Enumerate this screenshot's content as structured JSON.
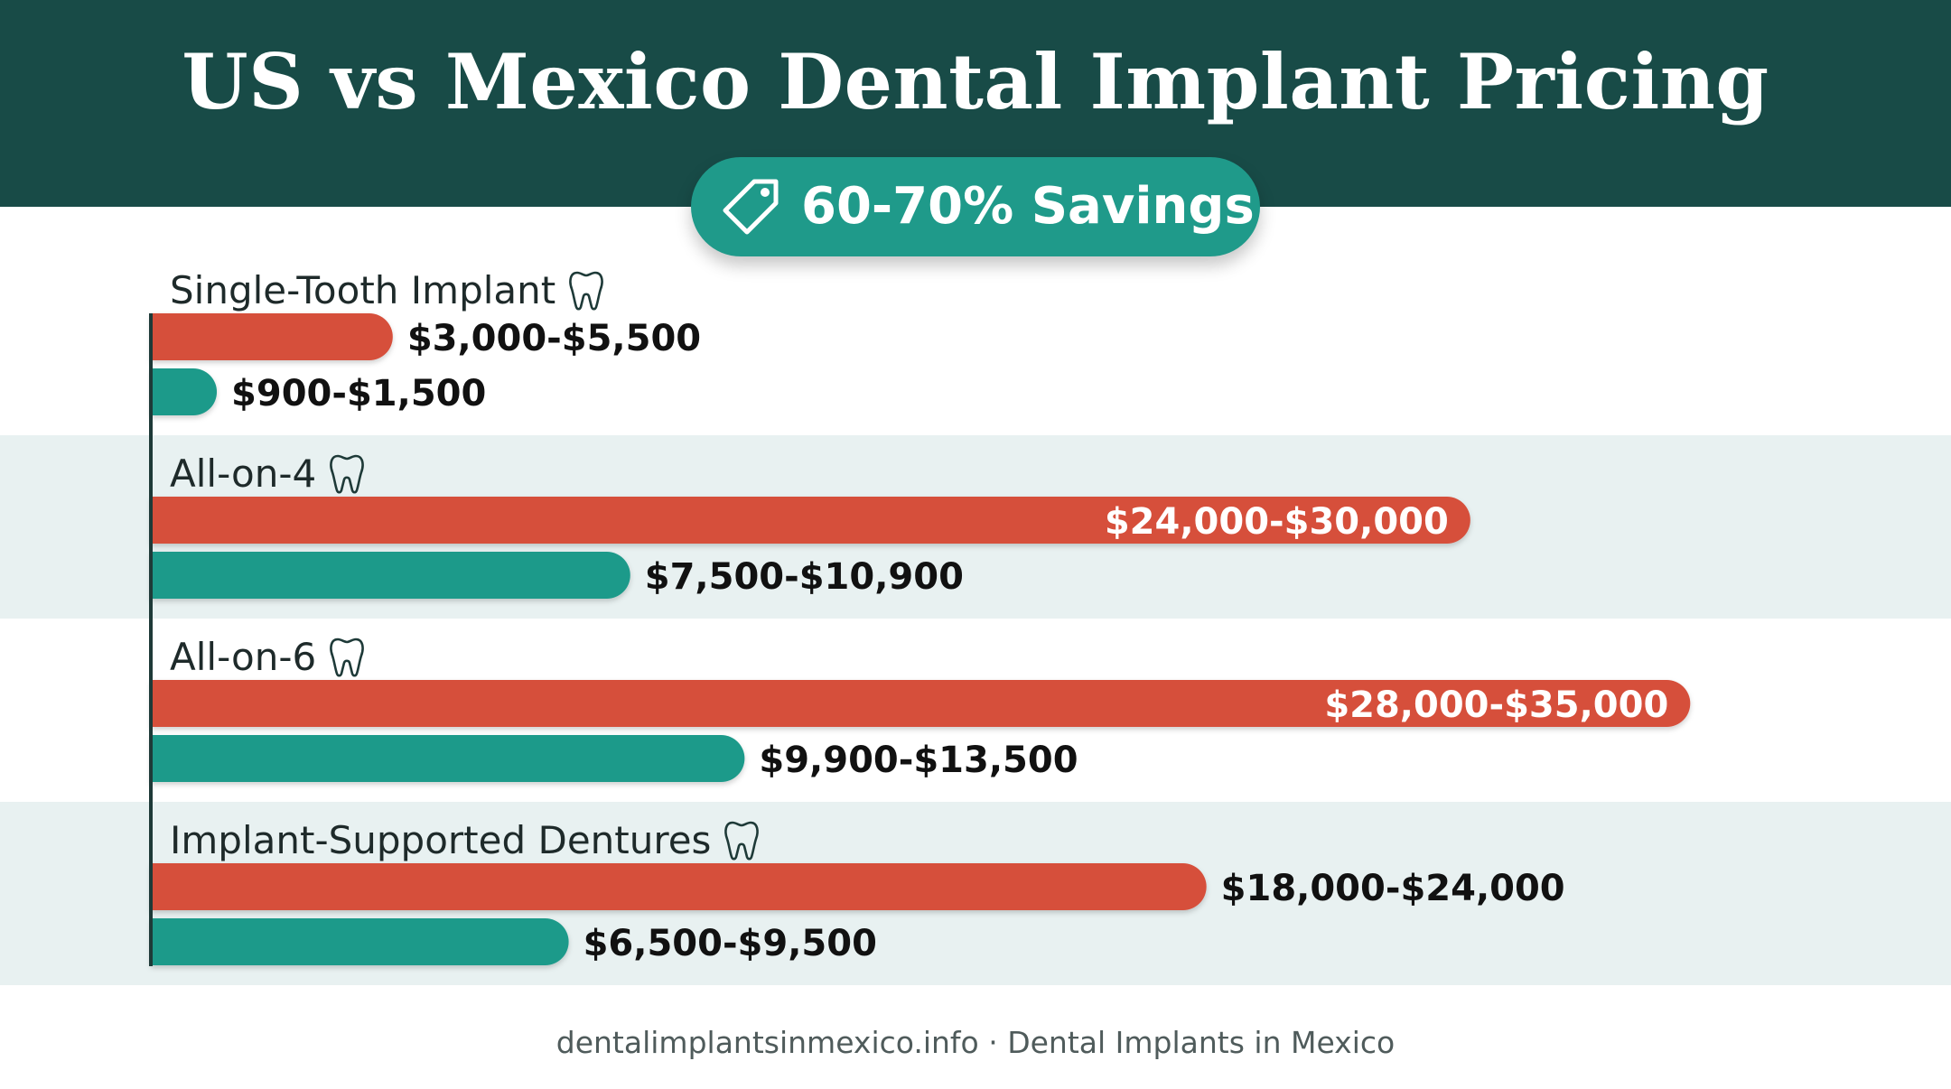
{
  "title": "US vs Mexico Dental Implant Pricing",
  "badge": {
    "text": "60-70% Savings",
    "icon": "price-tag-icon"
  },
  "footer": "dentalimplantsinmexico.info · Dental Implants in Mexico",
  "colors": {
    "header_bg": "#184b47",
    "us_bar": "#d64f3b",
    "mexico_bar": "#1f9a8a",
    "badge_bg": "#1f9a8a",
    "band_bg": "#e8f1f1",
    "axis": "#1e3a38",
    "label_text": "#1e2a2a"
  },
  "chart_data": {
    "type": "bar",
    "orientation": "horizontal",
    "title": "US vs Mexico Dental Implant Pricing",
    "xlim": [
      0,
      36000
    ],
    "grid": false,
    "legend": "none",
    "categories": [
      "Single-Tooth Implant",
      "All-on-4",
      "All-on-6",
      "Implant-Supported Dentures"
    ],
    "category_icon": "tooth-icon",
    "series": [
      {
        "color": "#d64f3b",
        "values": [
          5500,
          30000,
          35000,
          24000
        ],
        "ranges": [
          [
            3000,
            5500
          ],
          [
            24000,
            30000
          ],
          [
            28000,
            35000
          ],
          [
            18000,
            24000
          ]
        ],
        "labels": [
          "$3,000-$5,500",
          "$24,000-$30,000",
          "$28,000-$35,000",
          "$18,000-$24,000"
        ],
        "label_inside": [
          false,
          true,
          true,
          false
        ]
      },
      {
        "color": "#1f9a8a",
        "values": [
          1500,
          10900,
          13500,
          9500
        ],
        "ranges": [
          [
            900,
            1500
          ],
          [
            7500,
            10900
          ],
          [
            9900,
            13500
          ],
          [
            6500,
            9500
          ]
        ],
        "labels": [
          "$900-$1,500",
          "$7,500-$10,900",
          "$9,900-$13,500",
          "$6,500-$9,500"
        ],
        "label_inside": [
          false,
          false,
          false,
          false
        ]
      }
    ]
  }
}
